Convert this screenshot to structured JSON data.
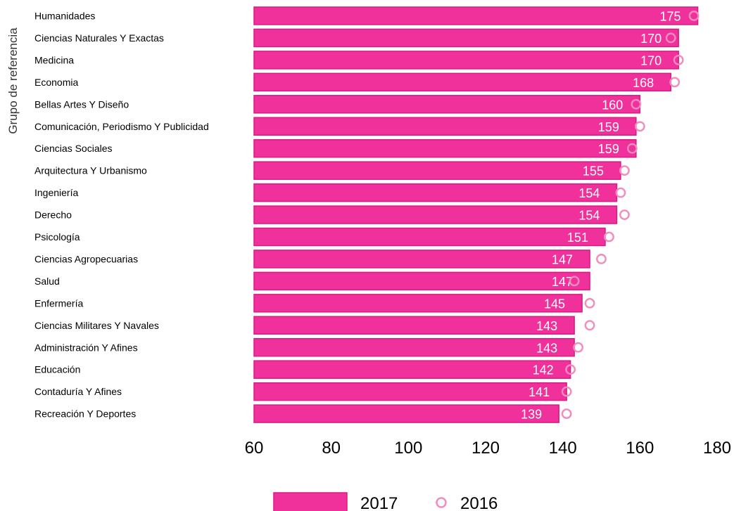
{
  "chart_data": {
    "type": "bar",
    "orientation": "horizontal",
    "title": "",
    "ylabel": "Grupo de referencia",
    "xlabel": "",
    "xlim": [
      60,
      180
    ],
    "xticks": [
      "60",
      "80",
      "100",
      "120",
      "140",
      "160",
      "180"
    ],
    "grid": false,
    "legend_position": "bottom",
    "categories": [
      "Humanidades",
      "Ciencias Naturales Y Exactas",
      "Medicina",
      "Economia",
      "Bellas Artes Y Diseño",
      "Comunicación, Periodismo Y Publicidad",
      "Ciencias Sociales",
      "Arquitectura Y Urbanismo",
      "Ingeniería",
      "Derecho",
      "Psicología",
      "Ciencias Agropecuarias",
      "Salud",
      "Enfermería",
      "Ciencias Militares Y Navales",
      "Administración Y Afines",
      "Educación",
      "Contaduría Y Afines",
      "Recreación Y Deportes"
    ],
    "series": [
      {
        "name": "2017",
        "kind": "bar",
        "color": "#f0309b",
        "edge_color": "#d81b85",
        "values": [
          175,
          170,
          170,
          168,
          160,
          159,
          159,
          155,
          154,
          154,
          151,
          147,
          147,
          145,
          143,
          143,
          142,
          141,
          139
        ],
        "labels": [
          "175",
          "170",
          "170",
          "168",
          "160",
          "159",
          "159",
          "155",
          "154",
          "154",
          "151",
          "147",
          "147",
          "145",
          "143",
          "143",
          "142",
          "141",
          "139"
        ]
      },
      {
        "name": "2016",
        "kind": "marker",
        "color": "#f28cbf",
        "values": [
          174,
          168,
          170,
          169,
          159,
          160,
          158,
          156,
          155,
          156,
          152,
          150,
          143,
          147,
          147,
          144,
          142,
          141,
          141
        ]
      }
    ]
  }
}
